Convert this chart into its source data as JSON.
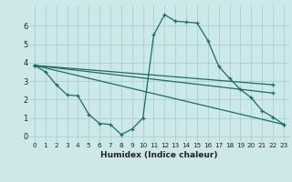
{
  "xlabel": "Humidex (Indice chaleur)",
  "bg_color": "#cce8e8",
  "grid_color": "#aacfcf",
  "line_color": "#1a6b6b",
  "xlim": [
    -0.5,
    23.5
  ],
  "ylim": [
    -0.3,
    7.1
  ],
  "xticks": [
    0,
    1,
    2,
    3,
    4,
    5,
    6,
    7,
    8,
    9,
    10,
    11,
    12,
    13,
    14,
    15,
    16,
    17,
    18,
    19,
    20,
    21,
    22,
    23
  ],
  "yticks": [
    0,
    1,
    2,
    3,
    4,
    5,
    6
  ],
  "ytick_labels": [
    "0",
    "1",
    "2",
    "3",
    "4",
    "5",
    "6"
  ],
  "series": [
    {
      "x": [
        0,
        1,
        2,
        3,
        4,
        5,
        6,
        7,
        8,
        9,
        10,
        11,
        12,
        13,
        14,
        15,
        16,
        17,
        18,
        19,
        20,
        21,
        22,
        23
      ],
      "y": [
        3.85,
        3.5,
        2.8,
        2.25,
        2.2,
        1.2,
        0.7,
        0.65,
        0.1,
        0.4,
        1.0,
        5.5,
        6.6,
        6.25,
        6.2,
        6.15,
        5.2,
        3.8,
        3.15,
        2.55,
        2.1,
        1.4,
        1.05,
        0.65
      ]
    },
    {
      "x": [
        0,
        22
      ],
      "y": [
        3.85,
        2.8
      ]
    },
    {
      "x": [
        0,
        22
      ],
      "y": [
        3.85,
        2.35
      ]
    },
    {
      "x": [
        0,
        23
      ],
      "y": [
        3.85,
        0.65
      ]
    }
  ]
}
